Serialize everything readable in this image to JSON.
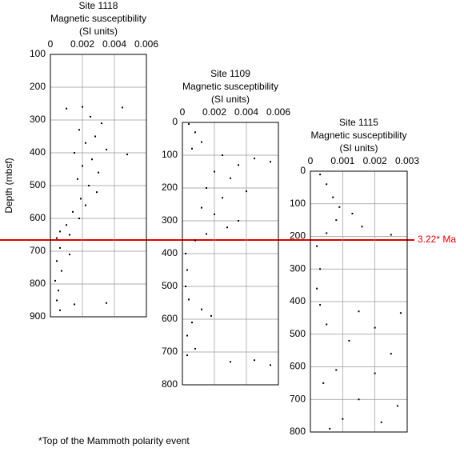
{
  "chart_data": [
    {
      "type": "scatter",
      "title": "Site 1118",
      "subtitle": "Magnetic susceptibility",
      "units": "(SI units)",
      "y_label": "Depth (mbsf)",
      "xlim": [
        0,
        0.006
      ],
      "xticks": [
        0,
        0.002,
        0.004,
        0.006
      ],
      "ylim": [
        100,
        900
      ],
      "yticks": [
        100,
        200,
        300,
        400,
        500,
        600,
        700,
        800,
        900
      ],
      "y_inverted": true,
      "grid": true,
      "color": "#000000",
      "x": [
        0.002,
        0.0045,
        0.001,
        0.0025,
        0.0032,
        0.0018,
        0.0028,
        0.0022,
        0.0035,
        0.0015,
        0.0048,
        0.0026,
        0.002,
        0.003,
        0.0017,
        0.0024,
        0.0029,
        0.0019,
        0.0022,
        0.0014,
        0.0018,
        0.001,
        0.0006,
        0.0012,
        0.0004,
        0.0006,
        0.0012,
        0.0004,
        0.0007,
        0.0003,
        0.0005,
        0.0004,
        0.0015,
        0.0035,
        0.0006
      ],
      "values": [
        260,
        262,
        265,
        290,
        310,
        330,
        350,
        370,
        390,
        400,
        405,
        420,
        440,
        460,
        480,
        500,
        520,
        540,
        560,
        580,
        600,
        620,
        640,
        650,
        660,
        690,
        710,
        730,
        760,
        790,
        820,
        850,
        862,
        858,
        880
      ]
    },
    {
      "type": "scatter",
      "title": "Site 1109",
      "subtitle": "Magnetic susceptibility",
      "units": "(SI units)",
      "xlim": [
        0,
        0.006
      ],
      "xticks": [
        0,
        0.002,
        0.004,
        0.006
      ],
      "ylim": [
        0,
        800
      ],
      "yticks": [
        0,
        100,
        200,
        300,
        400,
        500,
        600,
        700,
        800
      ],
      "y_inverted": true,
      "grid": true,
      "color": "#000000",
      "x": [
        0.0004,
        0.0008,
        0.0012,
        0.0006,
        0.0025,
        0.0045,
        0.0035,
        0.002,
        0.0055,
        0.003,
        0.0015,
        0.004,
        0.0025,
        0.0012,
        0.002,
        0.0035,
        0.0028,
        0.0015,
        0.0008,
        0.0002,
        0.0003,
        0.0002,
        0.0004,
        0.0012,
        0.0018,
        0.0006,
        0.0003,
        0.0008,
        0.0003,
        0.003,
        0.0055,
        0.0045
      ],
      "values": [
        5,
        30,
        60,
        80,
        100,
        110,
        130,
        150,
        120,
        170,
        200,
        210,
        230,
        260,
        280,
        300,
        320,
        340,
        360,
        400,
        450,
        500,
        540,
        570,
        590,
        610,
        650,
        690,
        710,
        730,
        740,
        725
      ]
    },
    {
      "type": "scatter",
      "title": "Site 1115",
      "subtitle": "Magnetic susceptibility",
      "units": "(SI units)",
      "xlim": [
        0,
        0.003
      ],
      "xticks": [
        0,
        0.001,
        0.002,
        0.003
      ],
      "ylim": [
        0,
        800
      ],
      "yticks": [
        0,
        100,
        200,
        300,
        400,
        500,
        600,
        700,
        800
      ],
      "y_inverted": true,
      "grid": true,
      "color": "#000000",
      "x": [
        0.0003,
        0.0005,
        0.0007,
        0.0009,
        0.0013,
        0.0008,
        0.0016,
        0.0025,
        0.0005,
        0.0002,
        0.0003,
        0.0002,
        0.0003,
        0.0015,
        0.0028,
        0.0005,
        0.002,
        0.0012,
        0.0025,
        0.0008,
        0.002,
        0.0004,
        0.0015,
        0.0027,
        0.001,
        0.0022,
        0.0006
      ],
      "values": [
        10,
        40,
        80,
        110,
        130,
        150,
        170,
        195,
        190,
        230,
        300,
        360,
        410,
        430,
        435,
        470,
        480,
        520,
        560,
        610,
        620,
        650,
        700,
        720,
        760,
        770,
        790
      ]
    }
  ],
  "annotation": "3.22* Ma",
  "footnote": "*Top of the Mammoth polarity event"
}
